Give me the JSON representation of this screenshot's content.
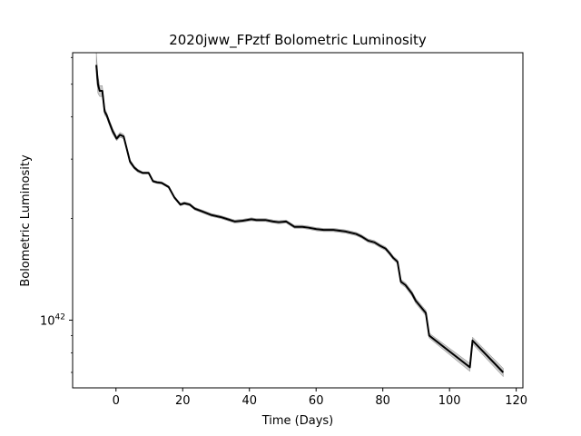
{
  "chart_data": {
    "type": "line",
    "title": "2020jww_FPztf Bolometric Luminosity",
    "xlabel": "Time (Days)",
    "ylabel": "Bolometric Luminosity",
    "xlim": [
      -13,
      122
    ],
    "ylim": [
      6.3e+41,
      6.2e+42
    ],
    "yscale": "log",
    "grid": false,
    "x_ticks": [
      0,
      20,
      40,
      60,
      80,
      100,
      120
    ],
    "x_tick_labels": [
      "0",
      "20",
      "40",
      "60",
      "80",
      "100",
      "120"
    ],
    "y_ticks": [
      1e+42
    ],
    "y_tick_labels": [
      {
        "base": "10",
        "exp": "42"
      }
    ],
    "line_color": "#000000",
    "band_color": "#a0a0a0",
    "series": [
      {
        "x": [
          -5.9,
          -5.4,
          -4.9,
          -4.1,
          -3.4,
          -2.8,
          -2.0,
          -1.0,
          0.2,
          1.2,
          2.3,
          3.3,
          4.2,
          5.5,
          6.6,
          8.0,
          9.8,
          11.1,
          12.3,
          13.7,
          15.8,
          17.5,
          19.3,
          20.5,
          22.1,
          23.6,
          25.8,
          28.5,
          31.4,
          33.5,
          35.6,
          38.0,
          40.6,
          42.1,
          44.8,
          47.1,
          48.8,
          51.0,
          53.5,
          55.9,
          57.6,
          60.1,
          62.3,
          65.2,
          68.9,
          72.0,
          73.6,
          75.6,
          77.5,
          79.2,
          80.8,
          82.0,
          83.1,
          84.4,
          85.4,
          86.8,
          88.7,
          89.9,
          92.9,
          93.9,
          106.1,
          106.9,
          116.1
        ],
        "y": [
          5.7e+42,
          5e+42,
          4.78e+42,
          4.78e+42,
          4.15e+42,
          4.05e+42,
          3.85e+42,
          3.63e+42,
          3.45e+42,
          3.54e+42,
          3.5e+42,
          3.2e+42,
          2.95e+42,
          2.83e+42,
          2.77e+42,
          2.73e+42,
          2.73e+42,
          2.58e+42,
          2.56e+42,
          2.55e+42,
          2.48e+42,
          2.31e+42,
          2.2e+42,
          2.22e+42,
          2.2e+42,
          2.14e+42,
          2.1e+42,
          2.05e+42,
          2.02e+42,
          1.99e+42,
          1.96e+42,
          1.97e+42,
          1.99e+42,
          1.98e+42,
          1.98e+42,
          1.96e+42,
          1.95e+42,
          1.96e+42,
          1.89e+42,
          1.89e+42,
          1.88e+42,
          1.86e+42,
          1.85e+42,
          1.85e+42,
          1.83e+42,
          1.8e+42,
          1.77e+42,
          1.72e+42,
          1.7e+42,
          1.66e+42,
          1.63e+42,
          1.58e+42,
          1.53e+42,
          1.49e+42,
          1.3e+42,
          1.27e+42,
          1.2e+42,
          1.14e+42,
          1.05e+42,
          9e+41,
          7.25e+41,
          8.7e+41,
          7e+41
        ],
        "y_upper": [
          6.2e+42,
          5.3e+42,
          4.95e+42,
          4.95e+42,
          4.25e+42,
          4.12e+42,
          3.92e+42,
          3.7e+42,
          3.5e+42,
          3.6e+42,
          3.55e+42,
          3.24e+42,
          2.99e+42,
          2.86e+42,
          2.8e+42,
          2.75e+42,
          2.75e+42,
          2.6e+42,
          2.58e+42,
          2.57e+42,
          2.5e+42,
          2.33e+42,
          2.22e+42,
          2.24e+42,
          2.22e+42,
          2.16e+42,
          2.12e+42,
          2.07e+42,
          2.04e+42,
          2.01e+42,
          1.98e+42,
          1.99e+42,
          2.01e+42,
          2e+42,
          2e+42,
          1.98e+42,
          1.97e+42,
          1.98e+42,
          1.91e+42,
          1.91e+42,
          1.9e+42,
          1.88e+42,
          1.87e+42,
          1.87e+42,
          1.85e+42,
          1.82e+42,
          1.79e+42,
          1.74e+42,
          1.72e+42,
          1.68e+42,
          1.65e+42,
          1.6e+42,
          1.55e+42,
          1.51e+42,
          1.32e+42,
          1.29e+42,
          1.22e+42,
          1.16e+42,
          1.07e+42,
          9.15e+41,
          7.45e+41,
          8.9e+41,
          7.2e+41
        ],
        "y_lower": [
          5.3e+42,
          4.7e+42,
          4.6e+42,
          4.6e+42,
          4.05e+42,
          3.98e+42,
          3.78e+42,
          3.56e+42,
          3.4e+42,
          3.48e+42,
          3.45e+42,
          3.16e+42,
          2.91e+42,
          2.8e+42,
          2.74e+42,
          2.71e+42,
          2.71e+42,
          2.56e+42,
          2.54e+42,
          2.53e+42,
          2.46e+42,
          2.29e+42,
          2.18e+42,
          2.2e+42,
          2.18e+42,
          2.12e+42,
          2.08e+42,
          2.03e+42,
          2e+42,
          1.97e+42,
          1.94e+42,
          1.95e+42,
          1.97e+42,
          1.96e+42,
          1.96e+42,
          1.94e+42,
          1.93e+42,
          1.94e+42,
          1.87e+42,
          1.87e+42,
          1.86e+42,
          1.84e+42,
          1.83e+42,
          1.83e+42,
          1.81e+42,
          1.78e+42,
          1.75e+42,
          1.7e+42,
          1.68e+42,
          1.64e+42,
          1.61e+42,
          1.56e+42,
          1.51e+42,
          1.47e+42,
          1.28e+42,
          1.25e+42,
          1.18e+42,
          1.12e+42,
          1.03e+42,
          8.85e+41,
          7.05e+41,
          8.5e+41,
          6.8e+41
        ]
      }
    ]
  }
}
